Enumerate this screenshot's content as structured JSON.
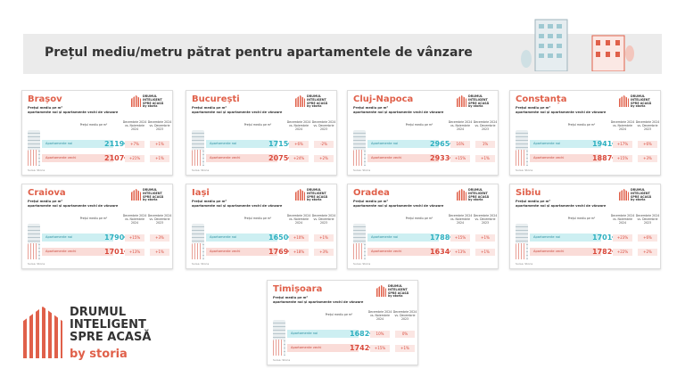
{
  "title": "Prețul mediu/metru pătrat pentru apartamentele de vânzare",
  "card_common": {
    "subtitle_1": "Prețul mediu pe m²",
    "subtitle_2": "apartamente noi și apartamente vechi de vânzare",
    "col_price": "Prețul mediu pe m²",
    "col_mom": "Decembrie 2024 vs. Noiembrie 2024",
    "col_yoy": "Decembrie 2024 vs. Decembrie 2023",
    "row_new": "Apartamente noi",
    "row_old": "Apartamente vechi",
    "source": "Sursa: Storia",
    "mini_logo": "DRUMUL INTELIGENT SPRE ACASĂ by storia"
  },
  "cities": [
    {
      "name": "Brașov",
      "new_price": "2119€",
      "old_price": "2107€",
      "new_mom": "+7%",
      "new_yoy": "+1%",
      "old_mom": "+21%",
      "old_yoy": "+1%"
    },
    {
      "name": "București",
      "new_price": "1715€",
      "old_price": "2075€",
      "new_mom": "+6%",
      "new_yoy": "-2%",
      "old_mom": "+24%",
      "old_yoy": "+2%"
    },
    {
      "name": "Cluj-Napoca",
      "new_price": "2965€",
      "old_price": "2933€",
      "new_mom": "16%",
      "new_yoy": "1%",
      "old_mom": "+15%",
      "old_yoy": "+1%"
    },
    {
      "name": "Constanța",
      "new_price": "1941€",
      "old_price": "1887€",
      "new_mom": "+17%",
      "new_yoy": "+6%",
      "old_mom": "+15%",
      "old_yoy": "+3%"
    },
    {
      "name": "Craiova",
      "new_price": "1790€",
      "old_price": "1701€",
      "new_mom": "+15%",
      "new_yoy": "+3%",
      "old_mom": "+13%",
      "old_yoy": "+1%"
    },
    {
      "name": "Iași",
      "new_price": "1650€",
      "old_price": "1769€",
      "new_mom": "+10%",
      "new_yoy": "+1%",
      "old_mom": "+18%",
      "old_yoy": "+3%"
    },
    {
      "name": "Oradea",
      "new_price": "1788€",
      "old_price": "1634€",
      "new_mom": "+15%",
      "new_yoy": "+1%",
      "old_mom": "+13%",
      "old_yoy": "+1%"
    },
    {
      "name": "Sibiu",
      "new_price": "1701€",
      "old_price": "1782€",
      "new_mom": "+23%",
      "new_yoy": "+6%",
      "old_mom": "+22%",
      "old_yoy": "+2%"
    },
    {
      "name": "Timișoara",
      "new_price": "1682€",
      "old_price": "1742€",
      "new_mom": "10%",
      "new_yoy": "0%",
      "old_mom": "+15%",
      "old_yoy": "+1%"
    }
  ],
  "logo": {
    "line1": "DRUMUL",
    "line2": "INTELIGENT",
    "line3": "SPRE ACASĂ",
    "by": "by storia"
  },
  "colors": {
    "accent": "#e0604a",
    "new": "#2fb0c0",
    "banner": "#ebebeb"
  }
}
